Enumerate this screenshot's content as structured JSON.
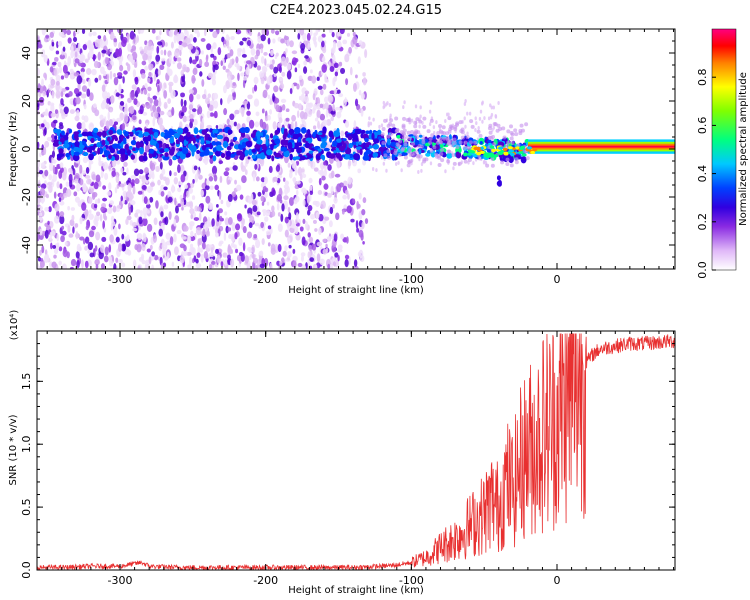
{
  "title": "C2E4.2023.045.02.24.G15",
  "chart_data": [
    {
      "type": "heatmap",
      "xlabel": "Height of straight line (km)",
      "ylabel": "Frequency (Hz)",
      "xlim": [
        -357,
        81
      ],
      "ylim": [
        -50,
        50
      ],
      "x_ticks": [
        -300,
        -200,
        -100,
        0
      ],
      "y_ticks": [
        -40,
        -20,
        0,
        20,
        40
      ],
      "colorbar": {
        "label": "Normalized spectral amplitude",
        "range": [
          0,
          1
        ],
        "ticks": [
          "0.0",
          "0.2",
          "0.4",
          "0.6",
          "0.8"
        ],
        "colors": [
          "#ffffff",
          "#d8a8f0",
          "#8a2be2",
          "#5a00d0",
          "#0000ff",
          "#00c8ff",
          "#00ff80",
          "#80ff00",
          "#ffff00",
          "#ff8000",
          "#ff0000",
          "#ff0080"
        ]
      },
      "features": {
        "carrier_line_frequency_hz": 1,
        "noise_region_x": [
          -357,
          -130
        ],
        "sparse_region_x": [
          -130,
          -20
        ],
        "strong_signal_x": [
          -20,
          81
        ]
      }
    },
    {
      "type": "line",
      "xlabel": "Height of straight line (km)",
      "ylabel": "SNR (10 * v/v)",
      "y_multiplier_label": "(x10⁴)",
      "xlim": [
        -357,
        81
      ],
      "ylim": [
        0,
        1.9
      ],
      "x_ticks": [
        -300,
        -200,
        -100,
        0
      ],
      "y_ticks": [
        "0.0",
        "0.5",
        "1.0",
        "1.5"
      ],
      "series_color": "#e83030",
      "series": [
        {
          "x": [
            -357,
            -340,
            -320,
            -300,
            -290,
            -285,
            -280,
            -260,
            -240,
            -220,
            -200,
            -180,
            -160,
            -140,
            -120,
            -110,
            -100,
            -90,
            -80,
            -70,
            -60,
            -50,
            -45,
            -40,
            -35,
            -30,
            -25,
            -20,
            -15,
            -10,
            -5,
            0,
            5,
            10,
            15,
            20,
            25,
            30,
            40,
            50,
            60,
            70,
            81
          ],
          "y": [
            0.02,
            0.02,
            0.03,
            0.03,
            0.05,
            0.06,
            0.03,
            0.02,
            0.02,
            0.02,
            0.02,
            0.02,
            0.02,
            0.02,
            0.03,
            0.04,
            0.06,
            0.1,
            0.18,
            0.25,
            0.35,
            0.45,
            0.55,
            0.5,
            0.7,
            0.65,
            0.85,
            0.95,
            1.0,
            1.1,
            1.15,
            1.2,
            1.3,
            1.4,
            1.55,
            1.65,
            1.72,
            1.76,
            1.78,
            1.8,
            1.8,
            1.81,
            1.82
          ]
        }
      ]
    }
  ]
}
